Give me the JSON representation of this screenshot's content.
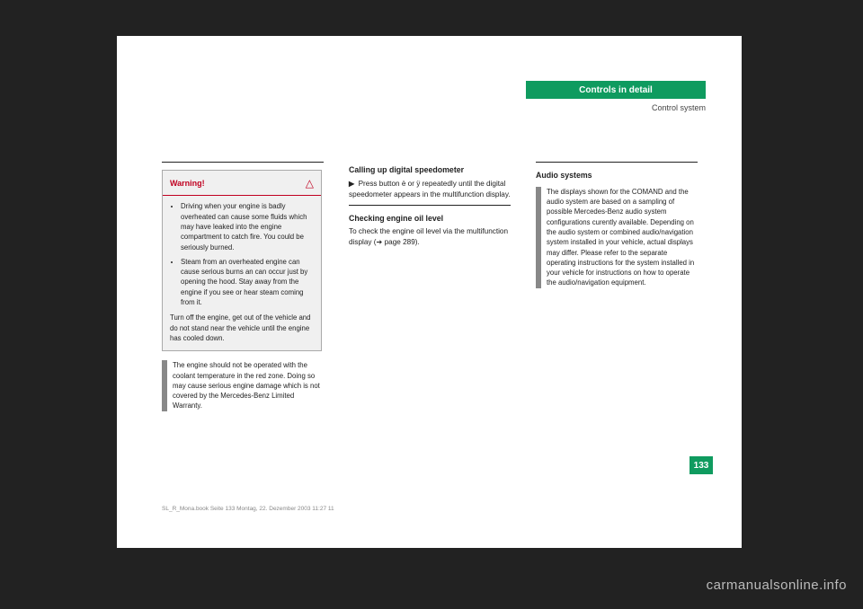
{
  "header": {
    "title": "Controls in detail",
    "subtitle": "Control system"
  },
  "col1": {
    "warning": {
      "title": "Warning!",
      "icon": "△",
      "bullets": [
        "Driving when your engine is badly overheated can cause some fluids which may have leaked into the engine compartment to catch fire. You could be seriously burned.",
        "Steam from an overheated engine can cause serious burns an can occur just by opening the hood. Stay away from the engine if you see or hear steam coming from it."
      ],
      "tail": "Turn off the engine, get out of the vehicle and do not stand near the vehicle until the engine has cooled down."
    },
    "info": "The engine should not be operated with the coolant temperature in the red zone. Doing so may cause serious engine damage which is not covered by the Mercedes-Benz Limited Warranty."
  },
  "col2": {
    "h1": "Calling up digital speedometer",
    "p1_lead": "▶",
    "p1": "Press button è or ÿ repeatedly until the digital speedometer appears in the multifunction display.",
    "h2": "Checking engine oil level",
    "p2": "To check the engine oil level via the multifunction display (➔ page 289)."
  },
  "col3": {
    "h1": "Audio systems",
    "info": "The displays shown for the COMAND and the audio system are based on a sampling of possible Mercedes-Benz audio system configurations curently available. Depending on the audio system or combined audio/navigation system installed in your vehicle, actual displays may differ. Please refer to the separate operating instructions for the system installed in your vehicle for instructions on how to operate the audio/navigation equipment."
  },
  "page_number": "133",
  "footer": {
    "left": "SL_R_Mona.book  Seite 133  Montag, 22. Dezember 2003  11:27 11",
    "right": ""
  },
  "watermark": "carmanualsonline.info",
  "colors": {
    "accent": "#0f9b5f",
    "warn": "#c00020",
    "bg": "#222222"
  }
}
